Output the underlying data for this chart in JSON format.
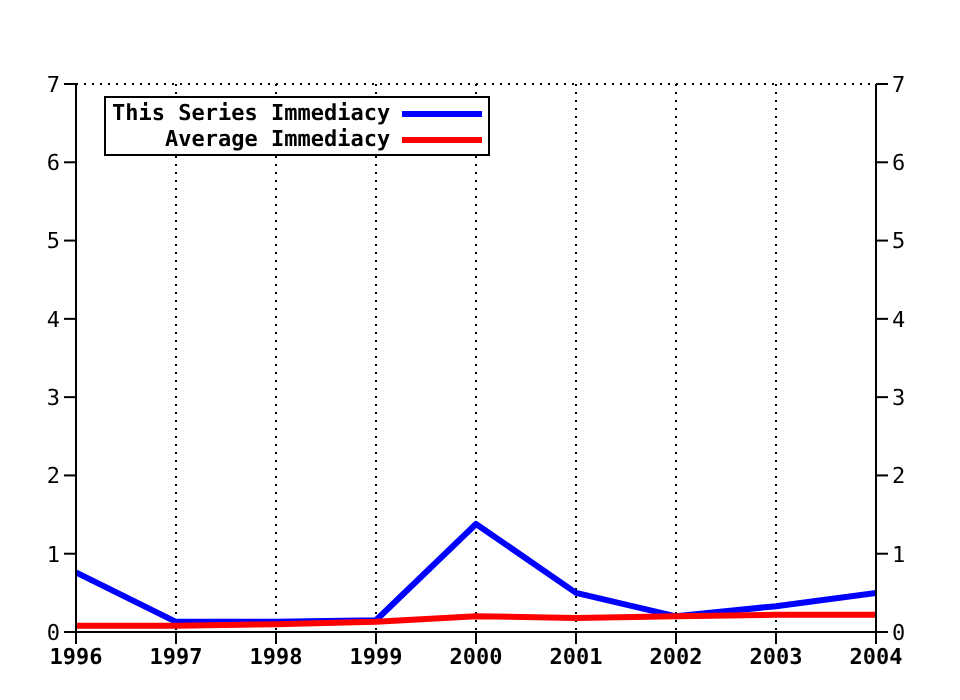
{
  "chart_data": {
    "type": "line",
    "categories": [
      "1996",
      "1997",
      "1998",
      "1999",
      "2000",
      "2001",
      "2002",
      "2003",
      "2004"
    ],
    "series": [
      {
        "name": "This Series Immediacy",
        "color": "#0000ff",
        "values": [
          0.76,
          0.13,
          0.13,
          0.15,
          1.38,
          0.5,
          0.2,
          0.33,
          0.5
        ]
      },
      {
        "name": "Average Immediacy",
        "color": "#ff0000",
        "values": [
          0.08,
          0.08,
          0.1,
          0.13,
          0.2,
          0.18,
          0.2,
          0.22,
          0.22
        ]
      }
    ],
    "ylim": [
      0,
      7
    ],
    "yticks": [
      0,
      1,
      2,
      3,
      4,
      5,
      6,
      7
    ],
    "y2lim": [
      0,
      7
    ],
    "y2ticks": [
      0,
      1,
      2,
      3,
      4,
      5,
      6,
      7
    ],
    "grid": true,
    "legend": "top left",
    "marker": "none",
    "line_style": "solid"
  }
}
